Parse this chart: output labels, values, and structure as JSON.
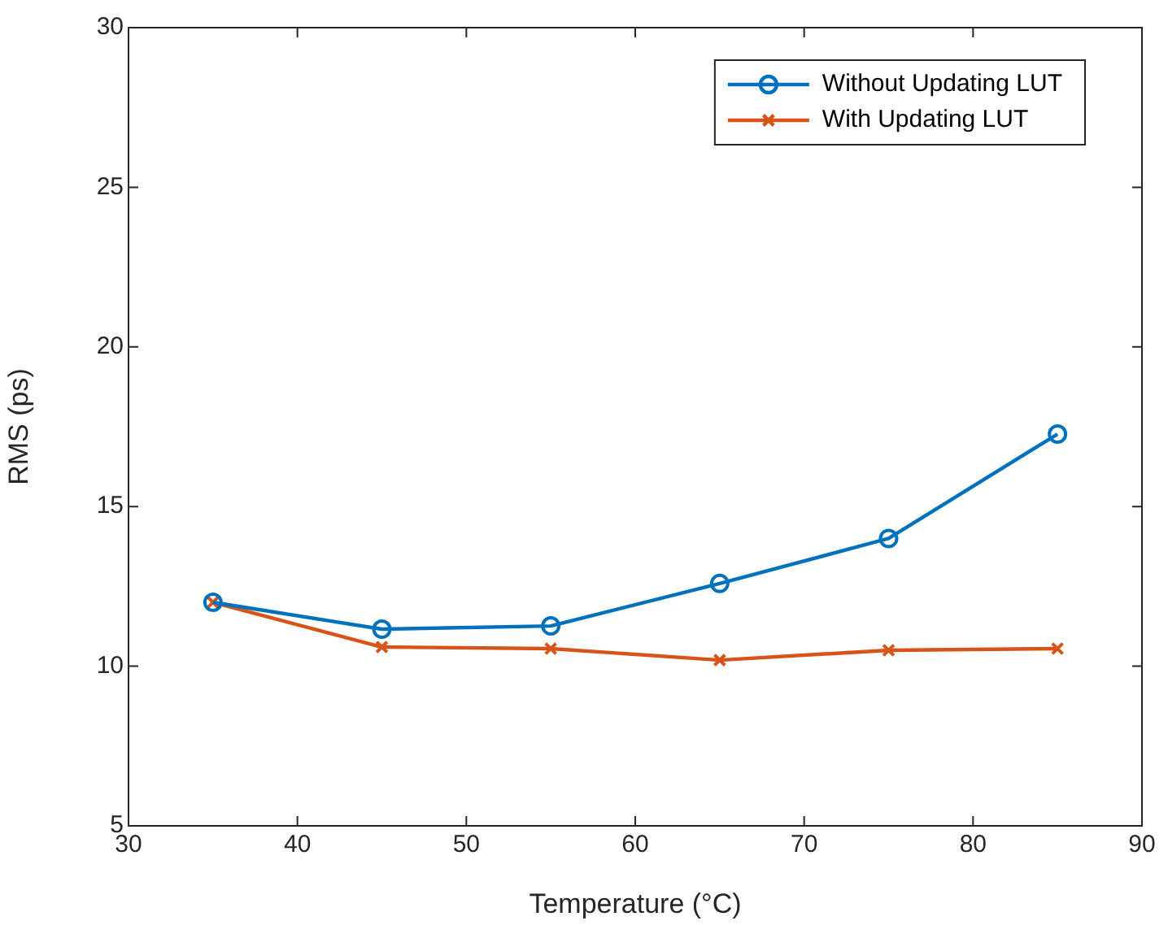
{
  "chart_data": {
    "type": "line",
    "xlabel": "Temperature (°C)",
    "ylabel": "RMS (ps)",
    "x": [
      35,
      45,
      55,
      65,
      75,
      85
    ],
    "series": [
      {
        "name": "Without Updating LUT",
        "color": "#0072bd",
        "marker": "circle",
        "values": [
          12.0,
          11.16,
          11.26,
          12.59,
          14.0,
          17.27
        ]
      },
      {
        "name": "With Updating LUT",
        "color": "#d95319",
        "marker": "cross",
        "values": [
          12.0,
          10.6,
          10.55,
          10.19,
          10.5,
          10.55
        ]
      }
    ],
    "xlim": [
      30,
      90
    ],
    "xticks": [
      30,
      40,
      50,
      60,
      70,
      80,
      90
    ],
    "ylim": [
      5,
      30
    ],
    "yticks": [
      5,
      10,
      15,
      20,
      25,
      30
    ],
    "grid": false,
    "legend": "top right"
  }
}
